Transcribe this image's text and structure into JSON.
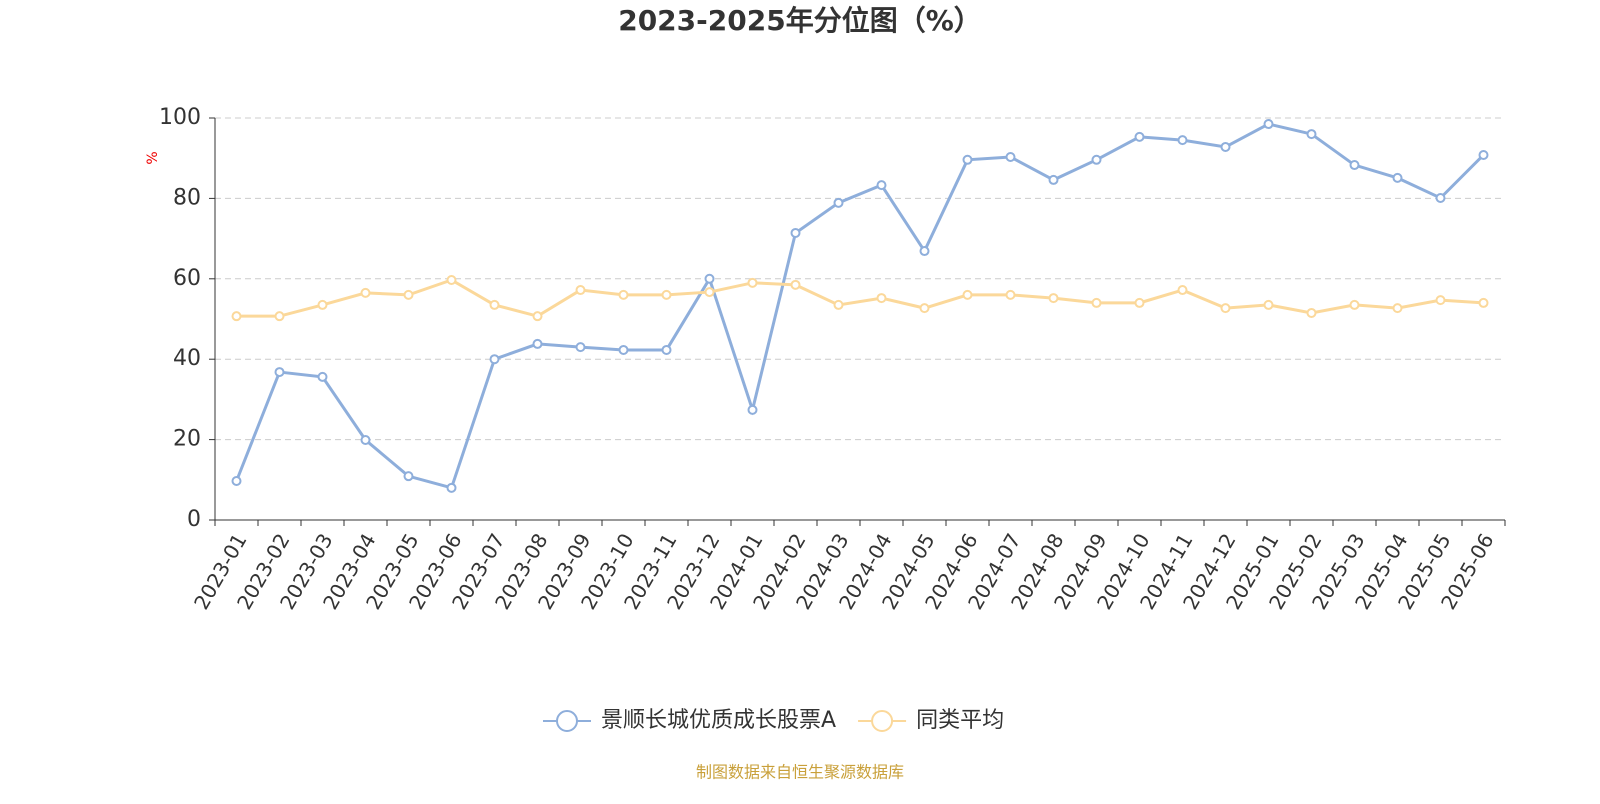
{
  "chart_data": {
    "type": "line",
    "title": "2023-2025年分位图（%）",
    "y_label": "%",
    "source": "制图数据来自恒生聚源数据库",
    "categories": [
      "2023-01",
      "2023-02",
      "2023-03",
      "2023-04",
      "2023-05",
      "2023-06",
      "2023-07",
      "2023-08",
      "2023-09",
      "2023-10",
      "2023-11",
      "2023-12",
      "2024-01",
      "2024-02",
      "2024-03",
      "2024-04",
      "2024-05",
      "2024-06",
      "2024-07",
      "2024-08",
      "2024-09",
      "2024-10",
      "2024-11",
      "2024-12",
      "2025-01",
      "2025-02",
      "2025-03",
      "2025-04",
      "2025-05",
      "2025-06"
    ],
    "series": [
      {
        "name": "景顺长城优质成长股票A",
        "color": "#8eaedb",
        "values": [
          9.7,
          36.8,
          35.6,
          19.9,
          10.9,
          8.0,
          40.0,
          43.8,
          43.0,
          42.3,
          42.3,
          60.0,
          27.4,
          71.4,
          78.9,
          83.3,
          66.9,
          89.6,
          90.3,
          84.6,
          89.6,
          95.3,
          94.5,
          92.8,
          98.5,
          96.0,
          88.3,
          85.1,
          80.1,
          90.8
        ]
      },
      {
        "name": "同类平均",
        "color": "#fbd89a",
        "values": [
          50.7,
          50.7,
          53.5,
          56.5,
          56.0,
          59.7,
          53.5,
          50.7,
          57.2,
          56.0,
          56.0,
          56.7,
          59.0,
          58.5,
          53.5,
          55.2,
          52.7,
          56.0,
          56.0,
          55.2,
          54.0,
          54.0,
          57.2,
          52.7,
          53.5,
          51.5,
          53.5,
          52.7,
          54.7,
          54.0
        ]
      }
    ],
    "ylim": [
      0,
      100
    ],
    "yticks": [
      0,
      20,
      40,
      60,
      80,
      100
    ],
    "grid": true
  }
}
